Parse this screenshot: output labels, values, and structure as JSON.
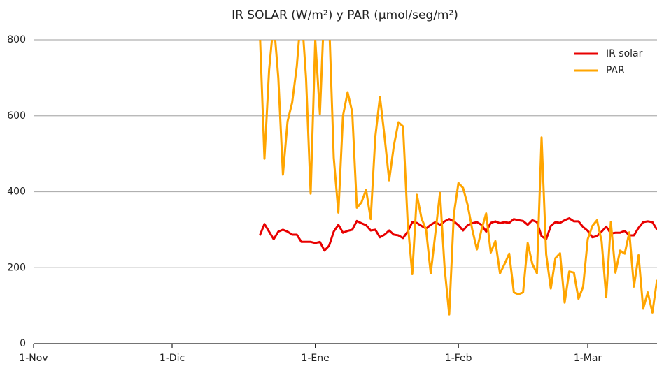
{
  "chart_data": {
    "type": "line",
    "title": "IR SOLAR (W/m²) y PAR (μmol/seg/m²)",
    "x": [
      49,
      50,
      51,
      52,
      53,
      54,
      55,
      56,
      57,
      58,
      59,
      60,
      61,
      62,
      63,
      64,
      65,
      66,
      67,
      68,
      69,
      70,
      71,
      72,
      73,
      74,
      75,
      76,
      77,
      78,
      79,
      80,
      81,
      82,
      83,
      84,
      85,
      86,
      87,
      88,
      89,
      90,
      91,
      92,
      93,
      94,
      95,
      96,
      97,
      98,
      99,
      100,
      101,
      102,
      103,
      104,
      105,
      106,
      107,
      108,
      109,
      110,
      111,
      112,
      113,
      114,
      115,
      116,
      117,
      118,
      119,
      120,
      121,
      122,
      123,
      124,
      125,
      126,
      127,
      128,
      129,
      130,
      131,
      132,
      133,
      134,
      135
    ],
    "series": [
      {
        "name": "IR solar",
        "color": "#e80000",
        "values": [
          285,
          315,
          295,
          275,
          295,
          300,
          295,
          287,
          287,
          268,
          268,
          268,
          265,
          268,
          245,
          258,
          295,
          313,
          292,
          297,
          300,
          323,
          317,
          312,
          298,
          300,
          280,
          287,
          298,
          287,
          285,
          278,
          295,
          320,
          318,
          310,
          303,
          313,
          320,
          313,
          322,
          328,
          322,
          312,
          298,
          312,
          317,
          320,
          313,
          295,
          318,
          322,
          317,
          320,
          318,
          328,
          325,
          323,
          313,
          325,
          320,
          283,
          275,
          310,
          320,
          318,
          325,
          330,
          322,
          322,
          307,
          297,
          280,
          283,
          295,
          308,
          290,
          292,
          292,
          297,
          285,
          285,
          305,
          320,
          322,
          320,
          300
        ]
      },
      {
        "name": "PAR",
        "color": "#ffa500",
        "values": [
          820,
          487,
          720,
          850,
          700,
          445,
          585,
          635,
          730,
          880,
          700,
          395,
          800,
          605,
          900,
          850,
          490,
          345,
          600,
          662,
          610,
          358,
          372,
          405,
          328,
          545,
          650,
          545,
          430,
          520,
          583,
          572,
          320,
          183,
          392,
          330,
          300,
          185,
          290,
          397,
          200,
          77,
          340,
          423,
          410,
          365,
          300,
          248,
          300,
          343,
          240,
          270,
          185,
          210,
          237,
          135,
          130,
          135,
          265,
          210,
          185,
          543,
          235,
          145,
          225,
          238,
          108,
          190,
          187,
          118,
          150,
          275,
          310,
          325,
          270,
          122,
          320,
          187,
          245,
          237,
          293,
          150,
          233,
          92,
          135,
          82,
          168
        ]
      }
    ],
    "xlim": [
      0,
      135
    ],
    "xticks": [
      {
        "value": 0,
        "label": "1-Nov"
      },
      {
        "value": 30,
        "label": "1-Dic"
      },
      {
        "value": 61,
        "label": "1-Ene"
      },
      {
        "value": 92,
        "label": "1-Feb"
      },
      {
        "value": 120,
        "label": "1-Mar"
      }
    ],
    "ylim": [
      0,
      800
    ],
    "yticks": [
      0,
      200,
      400,
      600,
      800
    ],
    "grid": true,
    "legend": "upper right"
  }
}
